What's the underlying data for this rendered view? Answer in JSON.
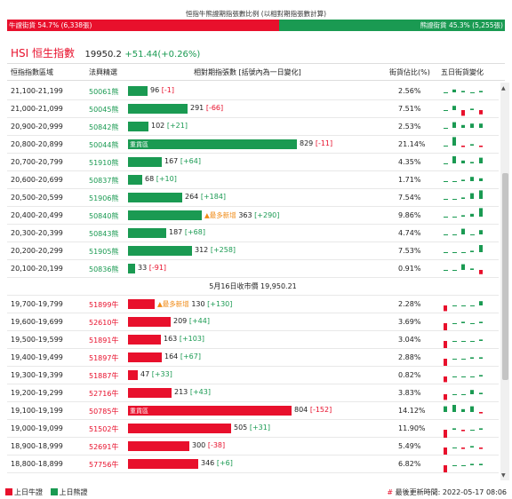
{
  "ratio": {
    "title": "恒指牛熊證期指張數比例 (以相對期指張數計算)",
    "bull_label": "牛證街貨 54.7% (6,338張)",
    "bear_label": "熊證街貨 45.3% (5,255張)",
    "bull_pct": 54.7,
    "bear_pct": 45.3
  },
  "index": {
    "name": "HSI 恒生指數",
    "value": "19950.2",
    "change": "+51.44(+0.26%)"
  },
  "headers": {
    "range": "恒指指數區域",
    "code": "法興精選",
    "contracts": "相對期指張數 [括號內為一日變化]",
    "street": "街貨佔比(%)",
    "trend": "五日街貨變化"
  },
  "colors": {
    "bull": "#e8102c",
    "bear": "#1a9a52",
    "new_tag": "#f08a14"
  },
  "bear_rows": [
    {
      "range": "21,100-21,199",
      "code": "50061熊",
      "count": 96,
      "chg": "[-1]",
      "pct": "2.56%",
      "spark": [
        0,
        2,
        1,
        0,
        1
      ]
    },
    {
      "range": "21,000-21,099",
      "code": "50045熊",
      "count": 291,
      "chg": "[-66]",
      "pct": "7.51%",
      "spark": [
        0,
        3,
        -4,
        1,
        -3
      ]
    },
    {
      "range": "20,900-20,999",
      "code": "50842熊",
      "count": 102,
      "chg": "[+21]",
      "pct": "2.53%",
      "spark": [
        0,
        4,
        2,
        3,
        3
      ]
    },
    {
      "range": "20,800-20,899",
      "code": "50044熊",
      "count": 829,
      "chg": "[-11]",
      "pct": "21.14%",
      "spark": [
        0,
        6,
        -1,
        1,
        -1
      ],
      "zone": "重貨區"
    },
    {
      "range": "20,700-20,799",
      "code": "51910熊",
      "count": 167,
      "chg": "[+64]",
      "pct": "4.35%",
      "spark": [
        0,
        5,
        2,
        1,
        4
      ]
    },
    {
      "range": "20,600-20,699",
      "code": "50837熊",
      "count": 68,
      "chg": "[+10]",
      "pct": "1.71%",
      "spark": [
        0,
        0,
        1,
        3,
        2
      ]
    },
    {
      "range": "20,500-20,599",
      "code": "51906熊",
      "count": 264,
      "chg": "[+184]",
      "pct": "7.54%",
      "spark": [
        0,
        0,
        1,
        4,
        6
      ]
    },
    {
      "range": "20,400-20,499",
      "code": "50840熊",
      "count": 363,
      "chg": "[+290]",
      "pct": "9.86%",
      "spark": [
        0,
        0,
        1,
        2,
        6
      ],
      "is_new": true
    },
    {
      "range": "20,300-20,399",
      "code": "50843熊",
      "count": 187,
      "chg": "[+68]",
      "pct": "4.74%",
      "spark": [
        0,
        0,
        4,
        0,
        3
      ]
    },
    {
      "range": "20,200-20,299",
      "code": "51905熊",
      "count": 312,
      "chg": "[+258]",
      "pct": "7.53%",
      "spark": [
        0,
        0,
        0,
        1,
        5
      ]
    },
    {
      "range": "20,100-20,199",
      "code": "50836熊",
      "count": 33,
      "chg": "[-91]",
      "pct": "0.91%",
      "spark": [
        0,
        0,
        4,
        1,
        -3
      ]
    }
  ],
  "close_text": "5月16日收市價 19,950.21",
  "bull_rows": [
    {
      "range": "19,700-19,799",
      "code": "51899牛",
      "count": 130,
      "chg": "[+130]",
      "pct": "2.28%",
      "spark": [
        -4,
        0,
        0,
        0,
        3
      ],
      "is_new": true
    },
    {
      "range": "19,600-19,699",
      "code": "52610牛",
      "count": 209,
      "chg": "[+44]",
      "pct": "3.69%",
      "spark": [
        -5,
        0,
        1,
        0,
        1
      ]
    },
    {
      "range": "19,500-19,599",
      "code": "51891牛",
      "count": 163,
      "chg": "[+103]",
      "pct": "3.04%",
      "spark": [
        -5,
        0,
        0,
        0,
        1
      ]
    },
    {
      "range": "19,400-19,499",
      "code": "51897牛",
      "count": 164,
      "chg": "[+67]",
      "pct": "2.88%",
      "spark": [
        -5,
        0,
        0,
        1,
        1
      ]
    },
    {
      "range": "19,300-19,399",
      "code": "51887牛",
      "count": 47,
      "chg": "[+33]",
      "pct": "0.82%",
      "spark": [
        -4,
        0,
        0,
        0,
        1
      ]
    },
    {
      "range": "19,200-19,299",
      "code": "52716牛",
      "count": 213,
      "chg": "[+43]",
      "pct": "3.83%",
      "spark": [
        -4,
        0,
        0,
        3,
        1
      ]
    },
    {
      "range": "19,100-19,199",
      "code": "50785牛",
      "count": 804,
      "chg": "[-152]",
      "pct": "14.12%",
      "spark": [
        4,
        5,
        2,
        4,
        -1
      ],
      "zone": "重貨區"
    },
    {
      "range": "19,000-19,099",
      "code": "51502牛",
      "count": 505,
      "chg": "[+31]",
      "pct": "11.90%",
      "spark": [
        -6,
        1,
        -1,
        0,
        1
      ]
    },
    {
      "range": "18,900-18,999",
      "code": "52691牛",
      "count": 300,
      "chg": "[-38]",
      "pct": "5.49%",
      "spark": [
        -5,
        0,
        -1,
        1,
        -1
      ]
    },
    {
      "range": "18,800-18,899",
      "code": "57756牛",
      "count": 346,
      "chg": "[+6]",
      "pct": "6.82%",
      "spark": [
        -5,
        0,
        0,
        1,
        1
      ]
    }
  ],
  "new_tag": "▲最多新增",
  "legend": {
    "prev_bull": "上日牛證",
    "prev_bear": "上日熊證"
  },
  "updated": {
    "hash": "#",
    "label": "最後更新時間: 2022-05-17 08:06"
  }
}
